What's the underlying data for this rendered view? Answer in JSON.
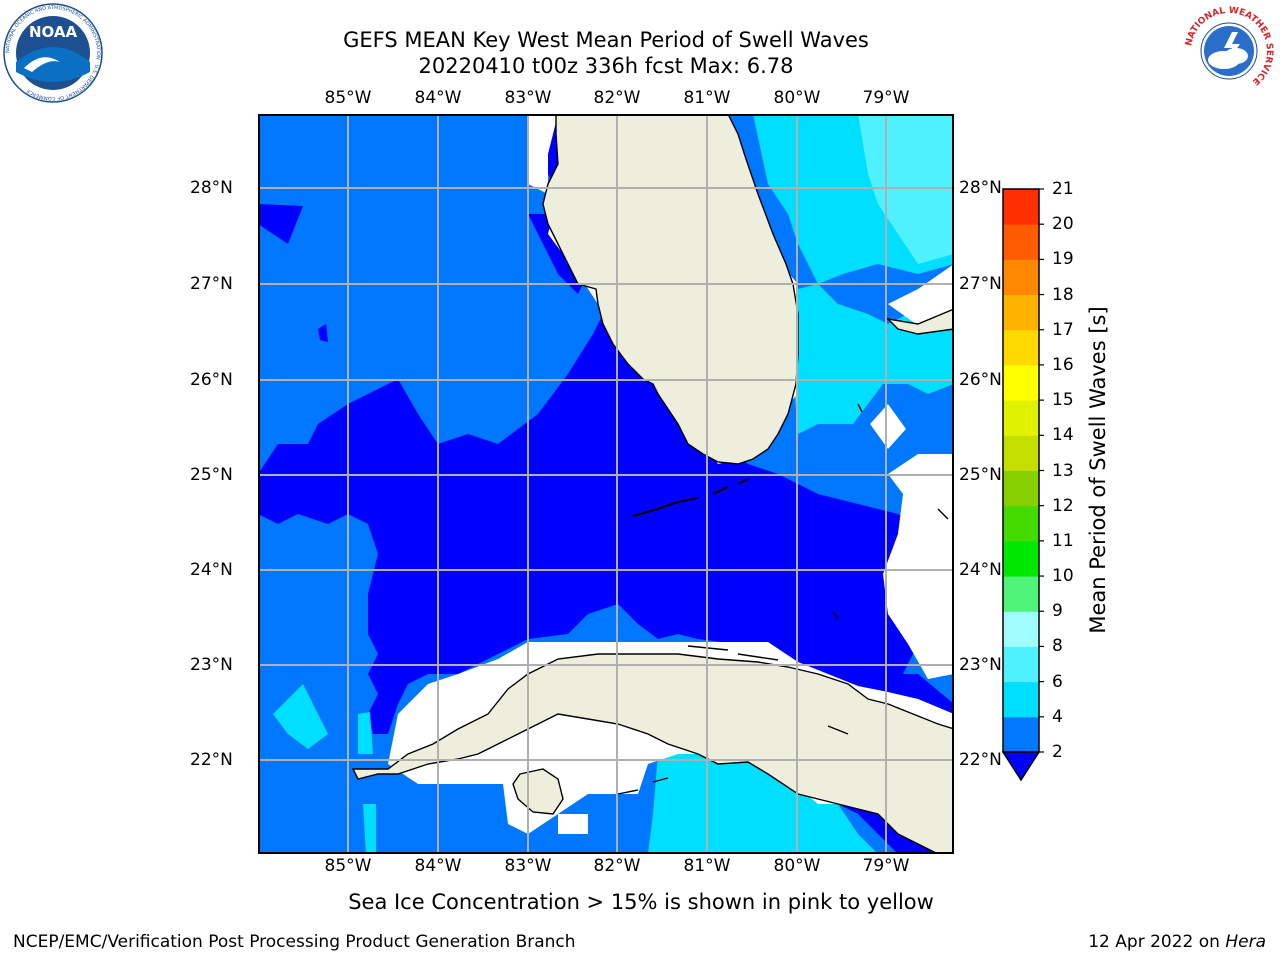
{
  "title": {
    "line1": "GEFS MEAN Key West Mean Period of Swell Waves",
    "line2": "20220410 t00z 336h fcst   Max: 6.78"
  },
  "axes": {
    "lon_labels": [
      "85°W",
      "84°W",
      "83°W",
      "82°W",
      "81°W",
      "80°W",
      "79°W"
    ],
    "lat_labels": [
      "28°N",
      "27°N",
      "26°N",
      "25°N",
      "24°N",
      "23°N",
      "22°N"
    ]
  },
  "colorbar": {
    "label": "Mean Period of Swell Waves [s]",
    "ticks": [
      "2",
      "4",
      "6",
      "8",
      "9",
      "10",
      "11",
      "12",
      "13",
      "14",
      "15",
      "16",
      "17",
      "18",
      "19",
      "20",
      "21"
    ],
    "colors": [
      "#0000ff",
      "#0077ff",
      "#00dfff",
      "#4ff0ff",
      "#9ffdff",
      "#4ef377",
      "#00e700",
      "#44db00",
      "#88cf00",
      "#c3df00",
      "#e1f200",
      "#ffff00",
      "#ffd900",
      "#ffb200",
      "#ff8800",
      "#ff5c00",
      "#ff3000",
      "#ff0000"
    ]
  },
  "footnote": "Sea Ice Concentration > 15% is shown in pink to yellow",
  "credits": {
    "left": "NCEP/EMC/Verification Post Processing Product Generation Branch",
    "right_date": "12 Apr 2022 on ",
    "right_machine": "Hera"
  },
  "logos": {
    "left": "NOAA",
    "left_ring": "NATIONAL OCEANIC AND ATMOSPHERIC ADMINISTRATION · U.S. DEPARTMENT OF COMMERCE",
    "right": "NATIONAL WEATHER SERVICE"
  },
  "map_colors": {
    "land": "#eeeedd",
    "deep_blue": "#0000ff",
    "mid_blue": "#0077ff",
    "cyan": "#00dfff",
    "light_cyan": "#4ff0ff",
    "grid": "#b0b0b0",
    "no_data": "#ffffff"
  }
}
